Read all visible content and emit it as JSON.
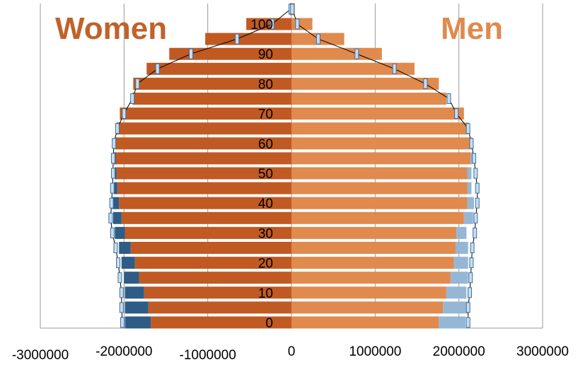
{
  "chart_data": {
    "type": "bar",
    "title": "",
    "labels": {
      "left": "Women",
      "right": "Men"
    },
    "x_ticks": [
      "-3000000",
      "-2000000",
      "-1000000",
      "0",
      "1000000",
      "2000000",
      "3000000"
    ],
    "x_tick_values": [
      -3000000,
      -2000000,
      -1000000,
      0,
      1000000,
      2000000,
      3000000
    ],
    "xlim": [
      -3000000,
      3000000
    ],
    "y_ticks": [
      "0",
      "10",
      "20",
      "30",
      "40",
      "50",
      "60",
      "70",
      "80",
      "90",
      "100"
    ],
    "y_tick_values": [
      0,
      10,
      20,
      30,
      40,
      50,
      60,
      70,
      80,
      90,
      100
    ],
    "age_groups": [
      0,
      5,
      10,
      15,
      20,
      25,
      30,
      35,
      40,
      45,
      50,
      55,
      60,
      65,
      70,
      75,
      80,
      85,
      90,
      95,
      100,
      105
    ],
    "series": [
      {
        "name": "Women",
        "values": [
          -1680000,
          -1710000,
          -1760000,
          -1820000,
          -1870000,
          -1920000,
          -1990000,
          -2030000,
          -2060000,
          -2080000,
          -2090000,
          -2100000,
          -2100000,
          -2080000,
          -2050000,
          -1900000,
          -1890000,
          -1730000,
          -1460000,
          -1030000,
          -540000,
          -20000
        ]
      },
      {
        "name": "Women (other)",
        "values": [
          -310000,
          -280000,
          -230000,
          -180000,
          -160000,
          -140000,
          -120000,
          -100000,
          -80000,
          -40000,
          -20000,
          -20000,
          -10000,
          -10000,
          0,
          0,
          0,
          0,
          0,
          0,
          0,
          0
        ]
      },
      {
        "name": "Men",
        "values": [
          1760000,
          1810000,
          1850000,
          1900000,
          1940000,
          1960000,
          1970000,
          2060000,
          2100000,
          2100000,
          2100000,
          2140000,
          2140000,
          2100000,
          2060000,
          1850000,
          1760000,
          1470000,
          1080000,
          630000,
          250000,
          40000
        ]
      },
      {
        "name": "Men (other)",
        "values": [
          320000,
          300000,
          240000,
          210000,
          170000,
          150000,
          120000,
          110000,
          80000,
          50000,
          50000,
          20000,
          20000,
          20000,
          0,
          0,
          0,
          0,
          0,
          0,
          0,
          0
        ]
      },
      {
        "name": "Women outline",
        "values": [
          -2020000,
          -2030000,
          -2030000,
          -2050000,
          -2070000,
          -2100000,
          -2140000,
          -2160000,
          -2150000,
          -2140000,
          -2130000,
          -2130000,
          -2120000,
          -2080000,
          -2000000,
          -1900000,
          -1840000,
          -1600000,
          -1200000,
          -650000,
          -230000,
          -10000
        ]
      },
      {
        "name": "Men outline",
        "values": [
          2110000,
          2110000,
          2130000,
          2140000,
          2150000,
          2160000,
          2190000,
          2200000,
          2220000,
          2220000,
          2200000,
          2180000,
          2150000,
          2110000,
          1970000,
          1880000,
          1600000,
          1230000,
          780000,
          320000,
          70000,
          10000
        ]
      }
    ],
    "colors": {
      "women": "#C05A22",
      "women_extra": "#2E5C86",
      "men": "#E08A4E",
      "men_extra": "#95B7D5",
      "label_women": "#C0622A",
      "label_men": "#E08A4E",
      "grid": "#9a9a9a",
      "outline": "#000000",
      "marker_fill": "#C9DDF0",
      "marker_stroke": "#3E6F9E"
    },
    "grid": true
  }
}
